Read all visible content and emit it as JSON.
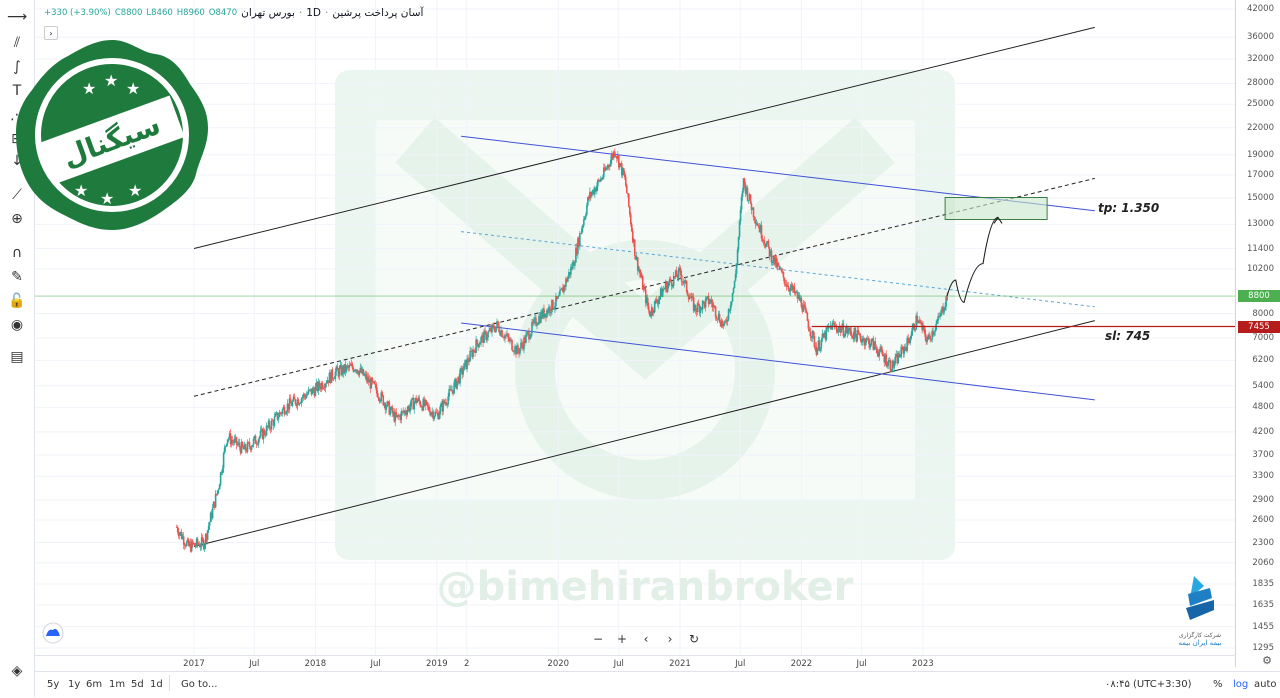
{
  "header": {
    "symbol": "آسان پرداخت پرشین",
    "interval": "1D",
    "exchange": "بورس تهران",
    "open": "O8470",
    "high": "H8960",
    "low": "L8460",
    "close": "C8800",
    "change": "+330 (+3.90%)",
    "collapse_label": "›"
  },
  "watermark": "@bimehiranbroker",
  "stamp": {
    "text": "سیگنال",
    "color": "#1f7a3d"
  },
  "logo": {
    "line1": "شرکت کارگزاری",
    "line2": "بیمه ایران بیمه"
  },
  "annotations": {
    "tp": "tp: 1.350",
    "sl": "sl: 745"
  },
  "price_tags": {
    "last": "8800",
    "last_color": "#4caf50",
    "sl_level": "7455",
    "sl_color": "#b71c1c"
  },
  "price_axis": {
    "scale": "log",
    "ticks": [
      "42000",
      "36000",
      "32000",
      "28000",
      "25000",
      "22000",
      "19000",
      "17000",
      "15000",
      "13000",
      "11400",
      "10200",
      "8000",
      "7000",
      "6200",
      "5400",
      "4800",
      "4200",
      "3700",
      "3300",
      "2900",
      "2600",
      "2300",
      "2060",
      "1835",
      "1635",
      "1455",
      "1295"
    ]
  },
  "time_axis": {
    "ticks": [
      "2017",
      "Jul",
      "2018",
      "Jul",
      "2019",
      "2",
      "2020",
      "Jul",
      "2021",
      "Jul",
      "2022",
      "Jul",
      "2023"
    ]
  },
  "bottom_bar": {
    "ranges": [
      "5y",
      "1y",
      "6m",
      "1m",
      "5d",
      "1d"
    ],
    "goto": "Go to...",
    "clock": "۰۸:۴۵ (UTC+3:30)",
    "percent": "%",
    "log": "log",
    "auto": "auto"
  },
  "nav": {
    "zoom_out": "−",
    "zoom_in": "+",
    "left": "‹",
    "right": "›",
    "reset": "↻"
  },
  "chart_data": {
    "type": "candlestick",
    "y_scale": "log",
    "ylim": [
      1295,
      42000
    ],
    "x_range": [
      "2016-07",
      "2023-12"
    ],
    "colors": {
      "up": "#26a69a",
      "down": "#ef5350"
    },
    "path_points": [
      [
        "2016-11-10",
        2500
      ],
      [
        "2016-12-15",
        2250
      ],
      [
        "2017-02-01",
        2300
      ],
      [
        "2017-03-15",
        3100
      ],
      [
        "2017-04-10",
        4100
      ],
      [
        "2017-06-01",
        3800
      ],
      [
        "2017-08-01",
        4200
      ],
      [
        "2017-10-01",
        4800
      ],
      [
        "2018-01-01",
        5300
      ],
      [
        "2018-03-01",
        5800
      ],
      [
        "2018-05-01",
        6000
      ],
      [
        "2018-07-01",
        5300
      ],
      [
        "2018-09-01",
        4500
      ],
      [
        "2018-11-01",
        5000
      ],
      [
        "2019-01-01",
        4600
      ],
      [
        "2019-03-01",
        5500
      ],
      [
        "2019-05-01",
        6800
      ],
      [
        "2019-07-01",
        7500
      ],
      [
        "2019-09-01",
        6500
      ],
      [
        "2019-11-01",
        7800
      ],
      [
        "2020-01-01",
        8600
      ],
      [
        "2020-02-15",
        10500
      ],
      [
        "2020-04-01",
        15000
      ],
      [
        "2020-05-15",
        17000
      ],
      [
        "2020-06-20",
        19500
      ],
      [
        "2020-07-20",
        16500
      ],
      [
        "2020-08-20",
        11000
      ],
      [
        "2020-10-01",
        8000
      ],
      [
        "2020-11-15",
        9200
      ],
      [
        "2021-01-01",
        10000
      ],
      [
        "2021-02-15",
        8200
      ],
      [
        "2021-04-01",
        8600
      ],
      [
        "2021-05-15",
        7400
      ],
      [
        "2021-06-15",
        9500
      ],
      [
        "2021-07-10",
        16500
      ],
      [
        "2021-08-15",
        13500
      ],
      [
        "2021-10-01",
        11000
      ],
      [
        "2021-11-15",
        9500
      ],
      [
        "2022-01-01",
        8500
      ],
      [
        "2022-02-15",
        6600
      ],
      [
        "2022-04-01",
        7500
      ],
      [
        "2022-06-01",
        7200
      ],
      [
        "2022-08-01",
        6800
      ],
      [
        "2022-10-01",
        6000
      ],
      [
        "2022-11-15",
        6800
      ],
      [
        "2022-12-15",
        7800
      ],
      [
        "2023-01-15",
        6900
      ],
      [
        "2023-02-20",
        7800
      ],
      [
        "2023-03-15",
        8800
      ]
    ],
    "series": [
      {
        "name": "",
        "values": [
          8470,
          8960,
          8460,
          8800
        ]
      }
    ],
    "levels": {
      "tp_zone": [
        13350,
        15050
      ],
      "sl": 7455,
      "last": 8800
    },
    "projection": [
      [
        "2023-03-15",
        8800
      ],
      [
        "2023-04-10",
        9600
      ],
      [
        "2023-05-05",
        8500
      ],
      [
        "2023-07-01",
        10500
      ],
      [
        "2023-08-15",
        13500
      ]
    ],
    "trendlines": [
      {
        "style": "black",
        "from": [
          "2017-01-01",
          11400
        ],
        "to": [
          "2024-06-01",
          38000
        ]
      },
      {
        "style": "black",
        "from": [
          "2017-01-01",
          2250
        ],
        "to": [
          "2024-06-01",
          7700
        ]
      },
      {
        "style": "black-dashed",
        "from": [
          "2017-01-01",
          5100
        ],
        "to": [
          "2024-06-01",
          16700
        ]
      },
      {
        "style": "blue",
        "from": [
          "2019-03-15",
          21000
        ],
        "to": [
          "2024-06-01",
          14000
        ]
      },
      {
        "style": "blue",
        "from": [
          "2019-03-15",
          7600
        ],
        "to": [
          "2024-06-01",
          5000
        ]
      },
      {
        "style": "blue-dashed",
        "from": [
          "2019-03-15",
          12500
        ],
        "to": [
          "2024-06-01",
          8300
        ]
      }
    ]
  }
}
